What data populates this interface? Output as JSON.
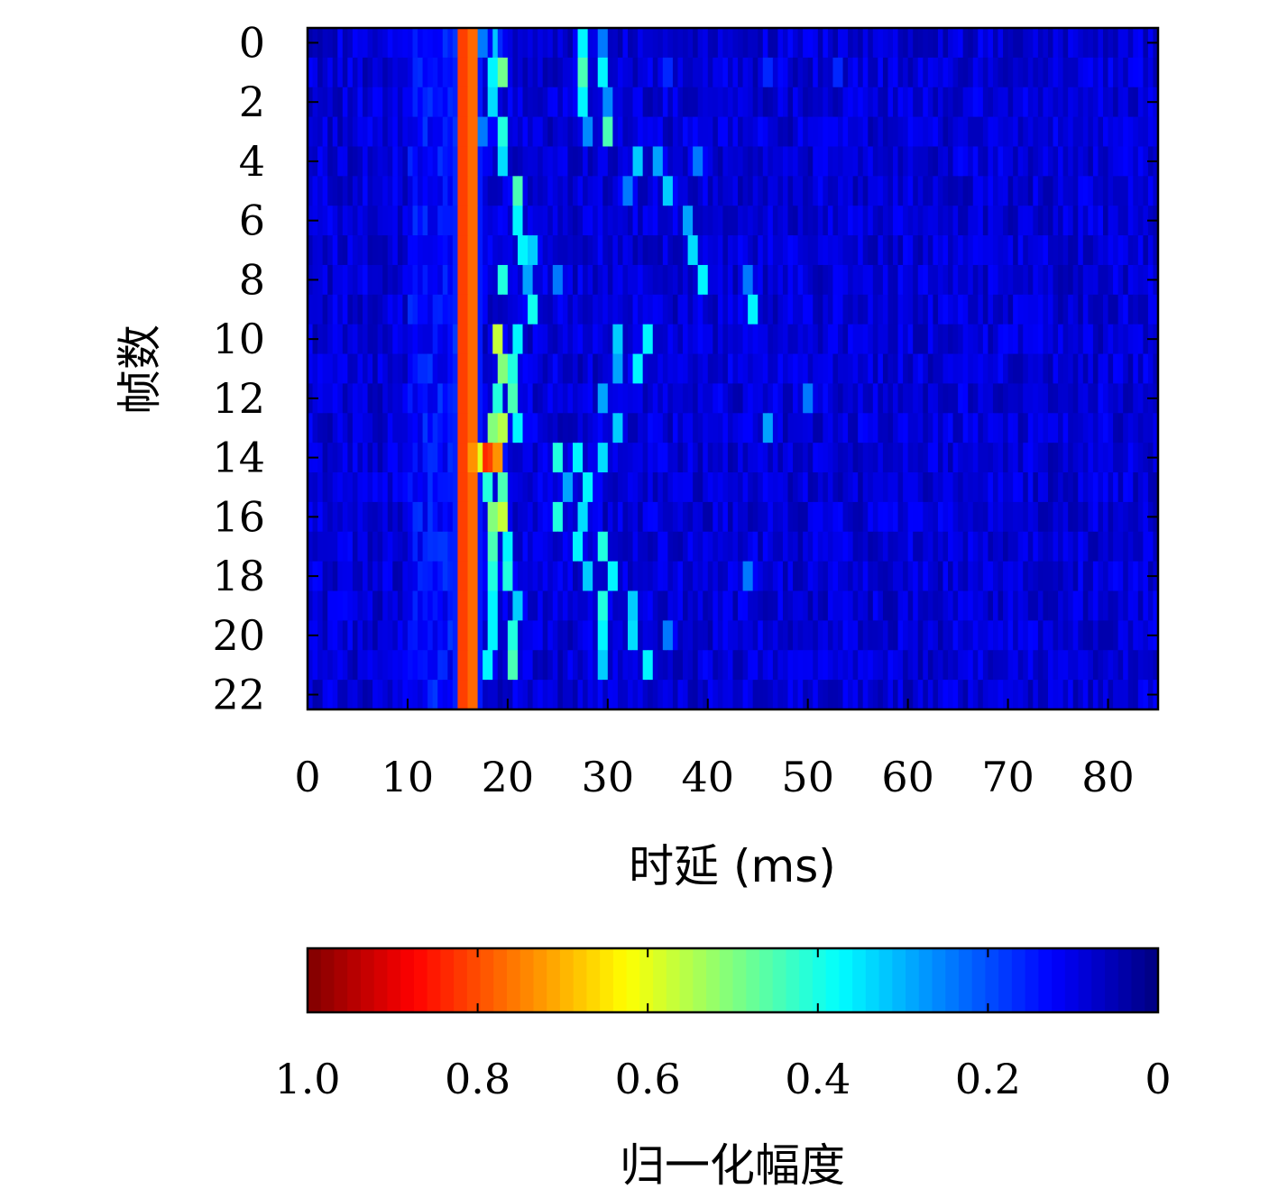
{
  "chart_data": [
    {
      "type": "heatmap",
      "xlabel": "时延 (ms)",
      "ylabel": "帧数",
      "xlim": [
        0,
        85
      ],
      "ylim": [
        -0.5,
        22.5
      ],
      "y_inverted": true,
      "x_ticks": [
        0,
        10,
        20,
        30,
        40,
        50,
        60,
        70,
        80
      ],
      "y_ticks": [
        0,
        2,
        4,
        6,
        8,
        10,
        12,
        14,
        16,
        18,
        20,
        22
      ],
      "frames": 23,
      "colormap": "jet",
      "value_range": [
        0,
        1
      ],
      "peaks": [
        {
          "frame": 0,
          "points": [
            [
              15.5,
              1.0
            ],
            [
              16.5,
              0.95
            ],
            [
              17.5,
              0.3
            ],
            [
              18.8,
              0.32
            ],
            [
              27.5,
              0.45
            ],
            [
              29.5,
              0.3
            ]
          ]
        },
        {
          "frame": 1,
          "points": [
            [
              15.5,
              1.0
            ],
            [
              16.5,
              0.95
            ],
            [
              18.5,
              0.45
            ],
            [
              19.5,
              0.6
            ],
            [
              27.5,
              0.55
            ],
            [
              29.5,
              0.45
            ],
            [
              36,
              0.2
            ],
            [
              46,
              0.2
            ],
            [
              53,
              0.2
            ]
          ]
        },
        {
          "frame": 2,
          "points": [
            [
              15.5,
              1.0
            ],
            [
              16.5,
              0.95
            ],
            [
              18.5,
              0.42
            ],
            [
              27.5,
              0.45
            ],
            [
              30,
              0.32
            ]
          ]
        },
        {
          "frame": 3,
          "points": [
            [
              15.5,
              1.0
            ],
            [
              16.5,
              0.95
            ],
            [
              17.5,
              0.3
            ],
            [
              19.5,
              0.5
            ],
            [
              28,
              0.32
            ],
            [
              30,
              0.55
            ]
          ]
        },
        {
          "frame": 4,
          "points": [
            [
              15.5,
              1.0
            ],
            [
              16.5,
              0.95
            ],
            [
              19.5,
              0.42
            ],
            [
              33,
              0.4
            ],
            [
              35,
              0.35
            ],
            [
              39,
              0.3
            ]
          ]
        },
        {
          "frame": 5,
          "points": [
            [
              15.5,
              1.0
            ],
            [
              16.5,
              0.95
            ],
            [
              21,
              0.55
            ],
            [
              32,
              0.3
            ],
            [
              36,
              0.4
            ]
          ]
        },
        {
          "frame": 6,
          "points": [
            [
              15.5,
              1.0
            ],
            [
              16.5,
              0.95
            ],
            [
              21,
              0.45
            ],
            [
              38,
              0.35
            ]
          ]
        },
        {
          "frame": 7,
          "points": [
            [
              15.5,
              1.0
            ],
            [
              16.5,
              0.95
            ],
            [
              21.5,
              0.45
            ],
            [
              22.5,
              0.4
            ],
            [
              38.5,
              0.42
            ]
          ]
        },
        {
          "frame": 8,
          "points": [
            [
              15.5,
              1.0
            ],
            [
              16.5,
              0.95
            ],
            [
              19.5,
              0.5
            ],
            [
              22,
              0.35
            ],
            [
              25,
              0.3
            ],
            [
              39.5,
              0.45
            ],
            [
              44,
              0.3
            ]
          ]
        },
        {
          "frame": 9,
          "points": [
            [
              15.5,
              1.0
            ],
            [
              16.5,
              0.95
            ],
            [
              22.5,
              0.48
            ],
            [
              44.5,
              0.45
            ]
          ]
        },
        {
          "frame": 10,
          "points": [
            [
              15.5,
              1.0
            ],
            [
              16.5,
              0.95
            ],
            [
              19,
              0.7
            ],
            [
              21,
              0.45
            ],
            [
              31,
              0.4
            ],
            [
              34,
              0.45
            ]
          ]
        },
        {
          "frame": 11,
          "points": [
            [
              15.5,
              1.0
            ],
            [
              16.5,
              0.95
            ],
            [
              19.5,
              0.62
            ],
            [
              20.5,
              0.5
            ],
            [
              31,
              0.35
            ],
            [
              33,
              0.45
            ]
          ]
        },
        {
          "frame": 12,
          "points": [
            [
              15.5,
              1.0
            ],
            [
              16.5,
              0.95
            ],
            [
              19,
              0.5
            ],
            [
              20.5,
              0.55
            ],
            [
              29.5,
              0.35
            ],
            [
              50,
              0.3
            ]
          ]
        },
        {
          "frame": 13,
          "points": [
            [
              15.5,
              1.0
            ],
            [
              16.5,
              0.95
            ],
            [
              18.5,
              0.62
            ],
            [
              19.5,
              0.68
            ],
            [
              21,
              0.45
            ],
            [
              31,
              0.4
            ],
            [
              46,
              0.35
            ]
          ]
        },
        {
          "frame": 14,
          "points": [
            [
              15.5,
              1.0
            ],
            [
              16.5,
              0.9
            ],
            [
              17.6,
              0.9
            ],
            [
              18.3,
              0.82
            ],
            [
              19,
              0.9
            ],
            [
              25,
              0.5
            ],
            [
              27,
              0.45
            ],
            [
              29.5,
              0.42
            ]
          ]
        },
        {
          "frame": 15,
          "points": [
            [
              15.5,
              1.0
            ],
            [
              16.5,
              0.95
            ],
            [
              18,
              0.5
            ],
            [
              19.5,
              0.55
            ],
            [
              26,
              0.35
            ],
            [
              28,
              0.45
            ]
          ]
        },
        {
          "frame": 16,
          "points": [
            [
              15.5,
              1.0
            ],
            [
              16.5,
              0.95
            ],
            [
              18.5,
              0.62
            ],
            [
              19.5,
              0.7
            ],
            [
              25,
              0.5
            ],
            [
              27.5,
              0.42
            ]
          ]
        },
        {
          "frame": 17,
          "points": [
            [
              15.5,
              1.0
            ],
            [
              16.5,
              0.95
            ],
            [
              18.5,
              0.55
            ],
            [
              20,
              0.45
            ],
            [
              27,
              0.45
            ],
            [
              29.5,
              0.5
            ]
          ]
        },
        {
          "frame": 18,
          "points": [
            [
              15.5,
              1.0
            ],
            [
              16.5,
              0.95
            ],
            [
              18.5,
              0.5
            ],
            [
              20,
              0.5
            ],
            [
              28,
              0.4
            ],
            [
              30.5,
              0.45
            ],
            [
              44,
              0.3
            ]
          ]
        },
        {
          "frame": 19,
          "points": [
            [
              15.5,
              1.0
            ],
            [
              16.5,
              0.95
            ],
            [
              18.5,
              0.45
            ],
            [
              21,
              0.4
            ],
            [
              29.5,
              0.5
            ],
            [
              32.5,
              0.4
            ]
          ]
        },
        {
          "frame": 20,
          "points": [
            [
              15.5,
              1.0
            ],
            [
              16.5,
              0.95
            ],
            [
              18.5,
              0.45
            ],
            [
              20.5,
              0.5
            ],
            [
              29.5,
              0.45
            ],
            [
              32.5,
              0.42
            ],
            [
              36,
              0.3
            ]
          ]
        },
        {
          "frame": 21,
          "points": [
            [
              15.5,
              1.0
            ],
            [
              16.5,
              0.95
            ],
            [
              18,
              0.45
            ],
            [
              20.5,
              0.55
            ],
            [
              29.5,
              0.4
            ],
            [
              34,
              0.45
            ]
          ]
        }
      ]
    },
    {
      "type": "colorbar",
      "xlabel": "归一化幅度",
      "range": [
        1.0,
        0
      ],
      "tick_values": [
        1.0,
        0.8,
        0.6,
        0.4,
        0.2,
        0
      ],
      "tick_labels": [
        "1.0",
        "0.8",
        "0.6",
        "0.4",
        "0.2",
        "0"
      ],
      "colormap": "jet",
      "reversed": true
    }
  ]
}
